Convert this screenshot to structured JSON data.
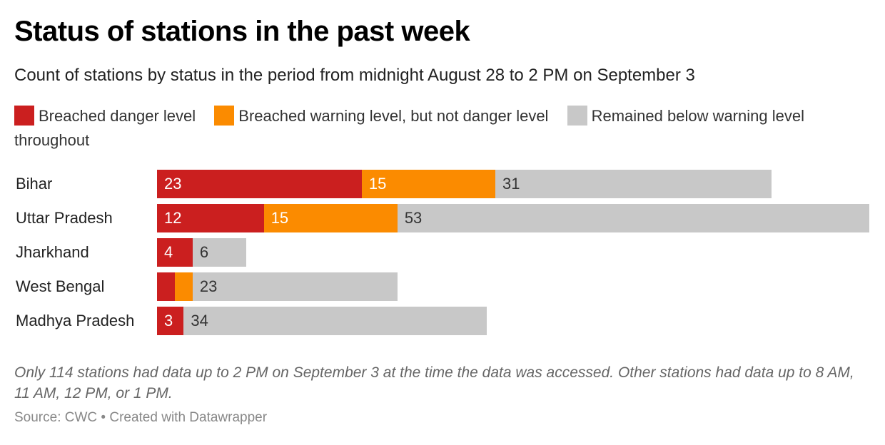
{
  "title": "Status of stations in the past week",
  "subtitle": "Count of stations by status in the period from midnight August 28 to 2 PM on September 3",
  "legend": [
    {
      "label": "Breached danger level",
      "color": "#cb1f1f"
    },
    {
      "label": "Breached warning level, but not danger level",
      "color": "#fb8b00"
    },
    {
      "label": "Remained below warning level throughout",
      "color": "#c8c8c8"
    }
  ],
  "chart_data": {
    "type": "bar",
    "orientation": "horizontal",
    "stacked": true,
    "categories": [
      "Bihar",
      "Uttar Pradesh",
      "Jharkhand",
      "West Bengal",
      "Madhya Pradesh"
    ],
    "series": [
      {
        "name": "Breached danger level",
        "color": "#cb1f1f",
        "values": [
          23,
          12,
          4,
          2,
          3
        ]
      },
      {
        "name": "Breached warning level, but not danger level",
        "color": "#fb8b00",
        "values": [
          15,
          15,
          0,
          2,
          0
        ]
      },
      {
        "name": "Remained below warning level throughout",
        "color": "#c8c8c8",
        "values": [
          31,
          53,
          6,
          23,
          34
        ]
      }
    ],
    "labels": [
      [
        "23",
        "15",
        "31"
      ],
      [
        "12",
        "15",
        "53"
      ],
      [
        "4",
        "",
        "6"
      ],
      [
        "",
        "",
        "23"
      ],
      [
        "3",
        "",
        "34"
      ]
    ],
    "xlim": [
      0,
      80
    ],
    "grid": false,
    "legend_position": "top"
  },
  "note": "Only 114 stations had data up to 2 PM on September 3 at the time the data was accessed. Other stations had data up to 8 AM, 11 AM, 12 PM, or 1 PM.",
  "source": "Source: CWC • Created with Datawrapper"
}
